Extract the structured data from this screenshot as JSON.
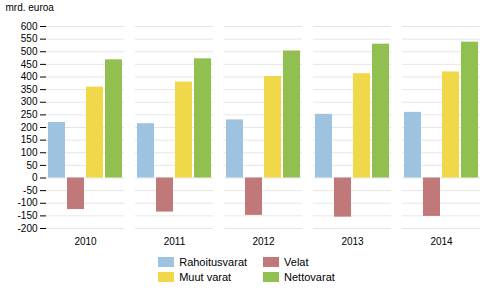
{
  "chart_data": {
    "type": "bar",
    "categories": [
      "2010",
      "2011",
      "2012",
      "2013",
      "2014"
    ],
    "series": [
      {
        "name": "Rahoitusvarat",
        "color": "#9dc3e0",
        "values": [
          220,
          215,
          230,
          252,
          260
        ]
      },
      {
        "name": "Velat",
        "color": "#c07878",
        "values": [
          -125,
          -135,
          -148,
          -155,
          -152
        ]
      },
      {
        "name": "Muut varat",
        "color": "#f0d84a",
        "values": [
          360,
          380,
          402,
          413,
          420
        ]
      },
      {
        "name": "Nettovarat",
        "color": "#92c050",
        "values": [
          468,
          472,
          503,
          530,
          538
        ]
      }
    ],
    "ylabel": "mrd. euroa",
    "ylim": [
      -200,
      600
    ],
    "yticks": [
      -200,
      -150,
      -100,
      -50,
      0,
      50,
      100,
      150,
      200,
      250,
      300,
      350,
      400,
      450,
      500,
      550,
      600
    ],
    "grid": true,
    "legend": "bottom"
  }
}
